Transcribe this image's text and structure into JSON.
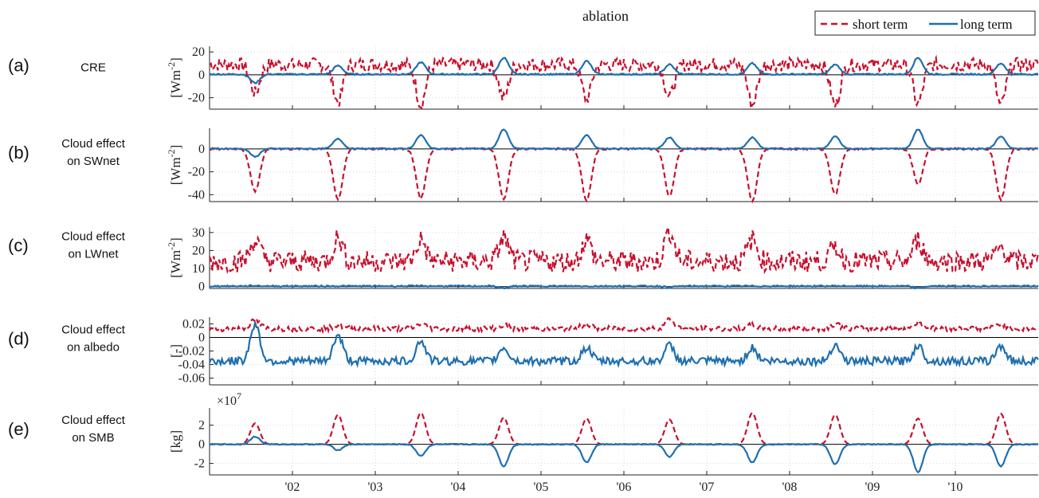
{
  "figure": {
    "title": "ablation",
    "colors": {
      "short_term": "#c8102e",
      "long_term": "#1f6fb0",
      "zero_line": "#000000",
      "grid": "#d8d8d8"
    },
    "legend": {
      "position": "top-right",
      "entries": [
        "short term",
        "long term"
      ]
    },
    "multiplier_label": "×10",
    "multiplier_exponent": "7"
  },
  "chart_data": [
    {
      "type": "line",
      "panel_letter": "(a)",
      "panel_label": [
        "CRE"
      ],
      "ylabel": "[Wm⁻²]",
      "ylabel_base": "[Wm",
      "ylabel_sup": "-2",
      "ylabel_close": "]",
      "ylim": [
        -30,
        25
      ],
      "yticks": [
        20,
        0,
        -20
      ],
      "ytick_labels": [
        "20",
        "0",
        "-20"
      ],
      "xlim": [
        2001.0,
        2011.0
      ],
      "xticks": [
        2002,
        2003,
        2004,
        2005,
        2006,
        2007,
        2008,
        2009,
        2010
      ],
      "xtick_labels": [
        "'02",
        "'03",
        "'04",
        "'05",
        "'06",
        "'07",
        "'08",
        "'09",
        "'10"
      ],
      "grid": true,
      "series": [
        {
          "name": "short term",
          "style": "dashed",
          "peaks": [
            -16,
            -24,
            -26,
            -21,
            -21,
            -19,
            -26,
            -27,
            -26,
            -27
          ],
          "baseline": 9,
          "noise": 6
        },
        {
          "name": "long term",
          "style": "solid",
          "peaks": [
            -7,
            8,
            11,
            15,
            12,
            9,
            10,
            9,
            15,
            10
          ],
          "baseline": 0.5,
          "noise": 0.6
        }
      ]
    },
    {
      "type": "line",
      "panel_letter": "(b)",
      "panel_label": [
        "Cloud effect",
        "on SWnet"
      ],
      "ylabel_base": "[Wm",
      "ylabel_sup": "-2",
      "ylabel_close": "]",
      "ylim": [
        -46,
        18
      ],
      "yticks": [
        0,
        -20,
        -40
      ],
      "ytick_labels": [
        "0",
        "-20",
        "-40"
      ],
      "xlim": [
        2001.0,
        2011.0
      ],
      "grid": true,
      "series": [
        {
          "name": "short term",
          "style": "dashed",
          "peaks": [
            -37,
            -44,
            -43,
            -44,
            -45,
            -41,
            -46,
            -40,
            -31,
            -44
          ],
          "baseline": 0,
          "noise": 0.8
        },
        {
          "name": "long term",
          "style": "solid",
          "peaks": [
            -7,
            9,
            12,
            17,
            12,
            10,
            10,
            11,
            17,
            11
          ],
          "baseline": 0.2,
          "noise": 0.4
        }
      ]
    },
    {
      "type": "line",
      "panel_letter": "(c)",
      "panel_label": [
        "Cloud effect",
        "on LWnet"
      ],
      "ylabel_base": "[Wm",
      "ylabel_sup": "-2",
      "ylabel_close": "]",
      "ylim": [
        -1,
        33
      ],
      "yticks": [
        30,
        20,
        10,
        0
      ],
      "ytick_labels": [
        "30",
        "20",
        "10",
        "0"
      ],
      "xlim": [
        2001.0,
        2011.0
      ],
      "grid": true,
      "series": [
        {
          "name": "short term",
          "style": "dashed",
          "peaks": [
            26,
            27,
            26,
            27,
            26,
            31,
            26,
            22,
            26,
            22
          ],
          "baseline": 14,
          "noise": 6
        },
        {
          "name": "long term",
          "style": "solid",
          "peaks": [
            0.5,
            0.3,
            0.4,
            -0.8,
            0.2,
            -0.4,
            0.3,
            0.4,
            -0.9,
            0.3
          ],
          "baseline": 0.3,
          "noise": 0.4
        }
      ]
    },
    {
      "type": "line",
      "panel_letter": "(d)",
      "panel_label": [
        "Cloud effect",
        "on albedo"
      ],
      "ylabel_base": "[-]",
      "ylabel_sup": "",
      "ylabel_close": "",
      "ylim": [
        -0.07,
        0.03
      ],
      "yticks": [
        0.02,
        0,
        -0.02,
        -0.04,
        -0.06
      ],
      "ytick_labels": [
        "0.02",
        "0",
        "-0.02",
        "-0.04",
        "-0.06"
      ],
      "xlim": [
        2001.0,
        2011.0
      ],
      "grid": true,
      "series": [
        {
          "name": "short term",
          "style": "dashed",
          "peaks": [
            0.025,
            0.018,
            0.02,
            0.018,
            0.02,
            0.026,
            0.018,
            0.02,
            0.022,
            0.02
          ],
          "baseline": 0.013,
          "noise": 0.004
        },
        {
          "name": "long term",
          "style": "solid",
          "peaks": [
            0.02,
            0.003,
            -0.005,
            -0.015,
            -0.015,
            -0.012,
            -0.015,
            -0.01,
            -0.012,
            -0.012
          ],
          "baseline": -0.035,
          "noise": 0.006
        }
      ]
    },
    {
      "type": "line",
      "panel_letter": "(e)",
      "panel_label": [
        "Cloud effect",
        "on SMB"
      ],
      "ylabel_base": "[kg]",
      "ylabel_sup": "",
      "ylabel_close": "",
      "ylim": [
        -3.2,
        3.8
      ],
      "yticks": [
        2,
        0,
        -2
      ],
      "ytick_labels": [
        "2",
        "0",
        "-2"
      ],
      "xlim": [
        2001.0,
        2011.0
      ],
      "grid": true,
      "series": [
        {
          "name": "short term",
          "style": "dashed",
          "peaks": [
            2.2,
            3.1,
            3.3,
            2.8,
            2.7,
            2.6,
            3.3,
            3.1,
            2.7,
            3.2
          ],
          "baseline": 0,
          "noise": 0
        },
        {
          "name": "long term",
          "style": "solid",
          "peaks": [
            0.8,
            -0.6,
            -1.2,
            -2.3,
            -1.9,
            -1.3,
            -1.9,
            -2.1,
            -2.9,
            -2.3
          ],
          "baseline": 0,
          "noise": 0.05
        }
      ]
    }
  ]
}
